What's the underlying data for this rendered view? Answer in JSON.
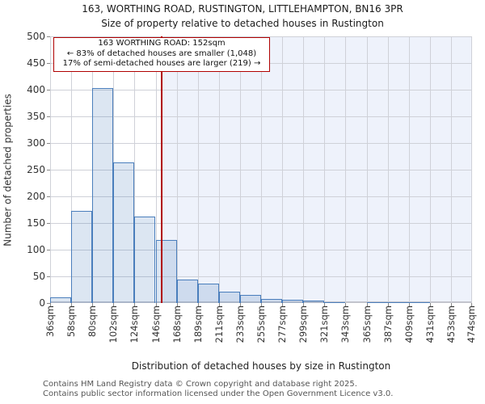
{
  "title": {
    "line1": "163, WORTHING ROAD, RUSTINGTON, LITTLEHAMPTON, BN16 3PR",
    "line2": "Size of property relative to detached houses in Rustington"
  },
  "annotation": {
    "line1": "163 WORTHING ROAD: 152sqm",
    "line2": "← 83% of detached houses are smaller (1,048)",
    "line3": "17% of semi-detached houses are larger (219) →"
  },
  "chart_data": {
    "type": "bar",
    "title": "163, WORTHING ROAD, RUSTINGTON, LITTLEHAMPTON, BN16 3PR",
    "subtitle": "Size of property relative to detached houses in Rustington",
    "xlabel": "Distribution of detached houses by size in Rustington",
    "ylabel": "Number of detached properties",
    "ylim": [
      0,
      500
    ],
    "y_ticks": [
      0,
      50,
      100,
      150,
      200,
      250,
      300,
      350,
      400,
      450,
      500
    ],
    "bin_edges_sqm": [
      36,
      58,
      80,
      102,
      124,
      146,
      168,
      189,
      211,
      233,
      255,
      277,
      299,
      321,
      343,
      365,
      387,
      409,
      431,
      453,
      474
    ],
    "x_tick_labels": [
      "36sqm",
      "58sqm",
      "80sqm",
      "102sqm",
      "124sqm",
      "146sqm",
      "168sqm",
      "189sqm",
      "211sqm",
      "233sqm",
      "255sqm",
      "277sqm",
      "299sqm",
      "321sqm",
      "343sqm",
      "365sqm",
      "387sqm",
      "409sqm",
      "431sqm",
      "453sqm",
      "474sqm"
    ],
    "values": [
      11,
      172,
      403,
      263,
      162,
      118,
      44,
      36,
      21,
      15,
      8,
      6,
      4,
      2,
      0,
      2,
      2,
      2,
      0,
      0
    ],
    "marker": {
      "label": "163 WORTHING ROAD",
      "value_sqm": 152
    },
    "grid": true,
    "legend": null
  },
  "footer": {
    "line1": "Contains HM Land Registry data © Crown copyright and database right 2025.",
    "line2": "Contains public sector information licensed under the Open Government Licence v3.0."
  },
  "colors": {
    "bar_fill": "rgba(79,129,189,0.20)",
    "bar_border": "#4a7ebc",
    "marker_line": "#b00000",
    "annotation_border": "#b00000",
    "shade_right_of_marker": "#eef2fb",
    "gridline": "#cfd1d8",
    "baseline": "#c2c4cc"
  }
}
